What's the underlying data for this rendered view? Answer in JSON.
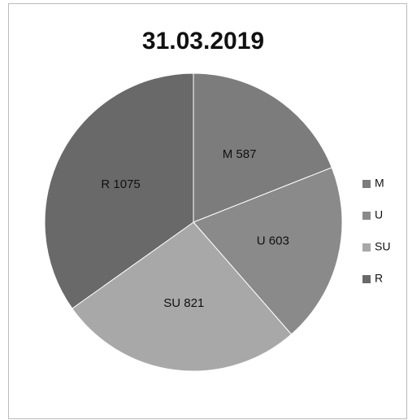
{
  "chart_data": {
    "type": "pie",
    "title": "31.03.2019",
    "categories": [
      "M",
      "U",
      "SU",
      "R"
    ],
    "values": [
      587,
      603,
      821,
      1075
    ],
    "value_labels": [
      "M 587",
      "U 603",
      "SU 821",
      "R 1075"
    ],
    "colors": [
      "#7c7c7c",
      "#8a8a8a",
      "#a8a8a8",
      "#696969"
    ],
    "legend": "right"
  }
}
